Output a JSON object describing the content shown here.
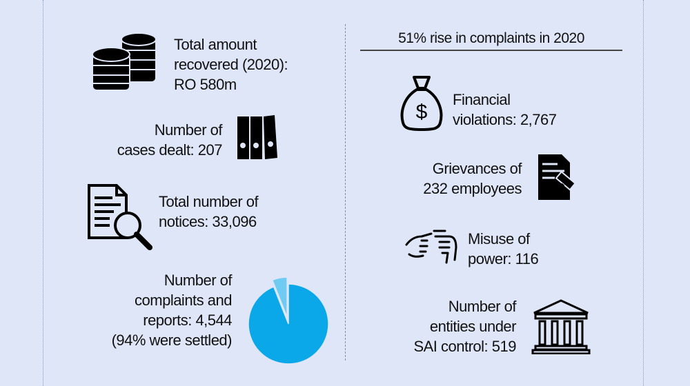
{
  "left": {
    "recovered": "Total amount recovered (2020): RO 580m",
    "recovered_lines": [
      "Total amount",
      "recovered (2020):",
      "RO 580m"
    ],
    "cases_lines": [
      "Number of",
      "cases dealt: 207"
    ],
    "notices_lines": [
      "Total number of",
      "notices: 33,096"
    ],
    "complaints_lines": [
      "Number of",
      "complaints and",
      "reports: 4,544",
      "(94% were settled)"
    ]
  },
  "right": {
    "headline": "51% rise in complaints in 2020",
    "financial_lines": [
      "Financial",
      "violations: 2,767"
    ],
    "grievances_lines": [
      "Grievances of",
      "232 employees"
    ],
    "misuse_lines": [
      "Misuse of",
      "power: 116"
    ],
    "entities_lines": [
      "Number of",
      "entities under",
      "SAI control: 519"
    ]
  },
  "chart_data": {
    "type": "pie",
    "values": [
      94,
      6
    ],
    "colors": [
      "#0aa8e8",
      "#6fcbf2"
    ],
    "exploded": [
      false,
      true
    ]
  },
  "colors": {
    "background": "#dfe6f7",
    "pie_main": "#0aa8e8",
    "pie_slice": "#6fcbf2"
  }
}
